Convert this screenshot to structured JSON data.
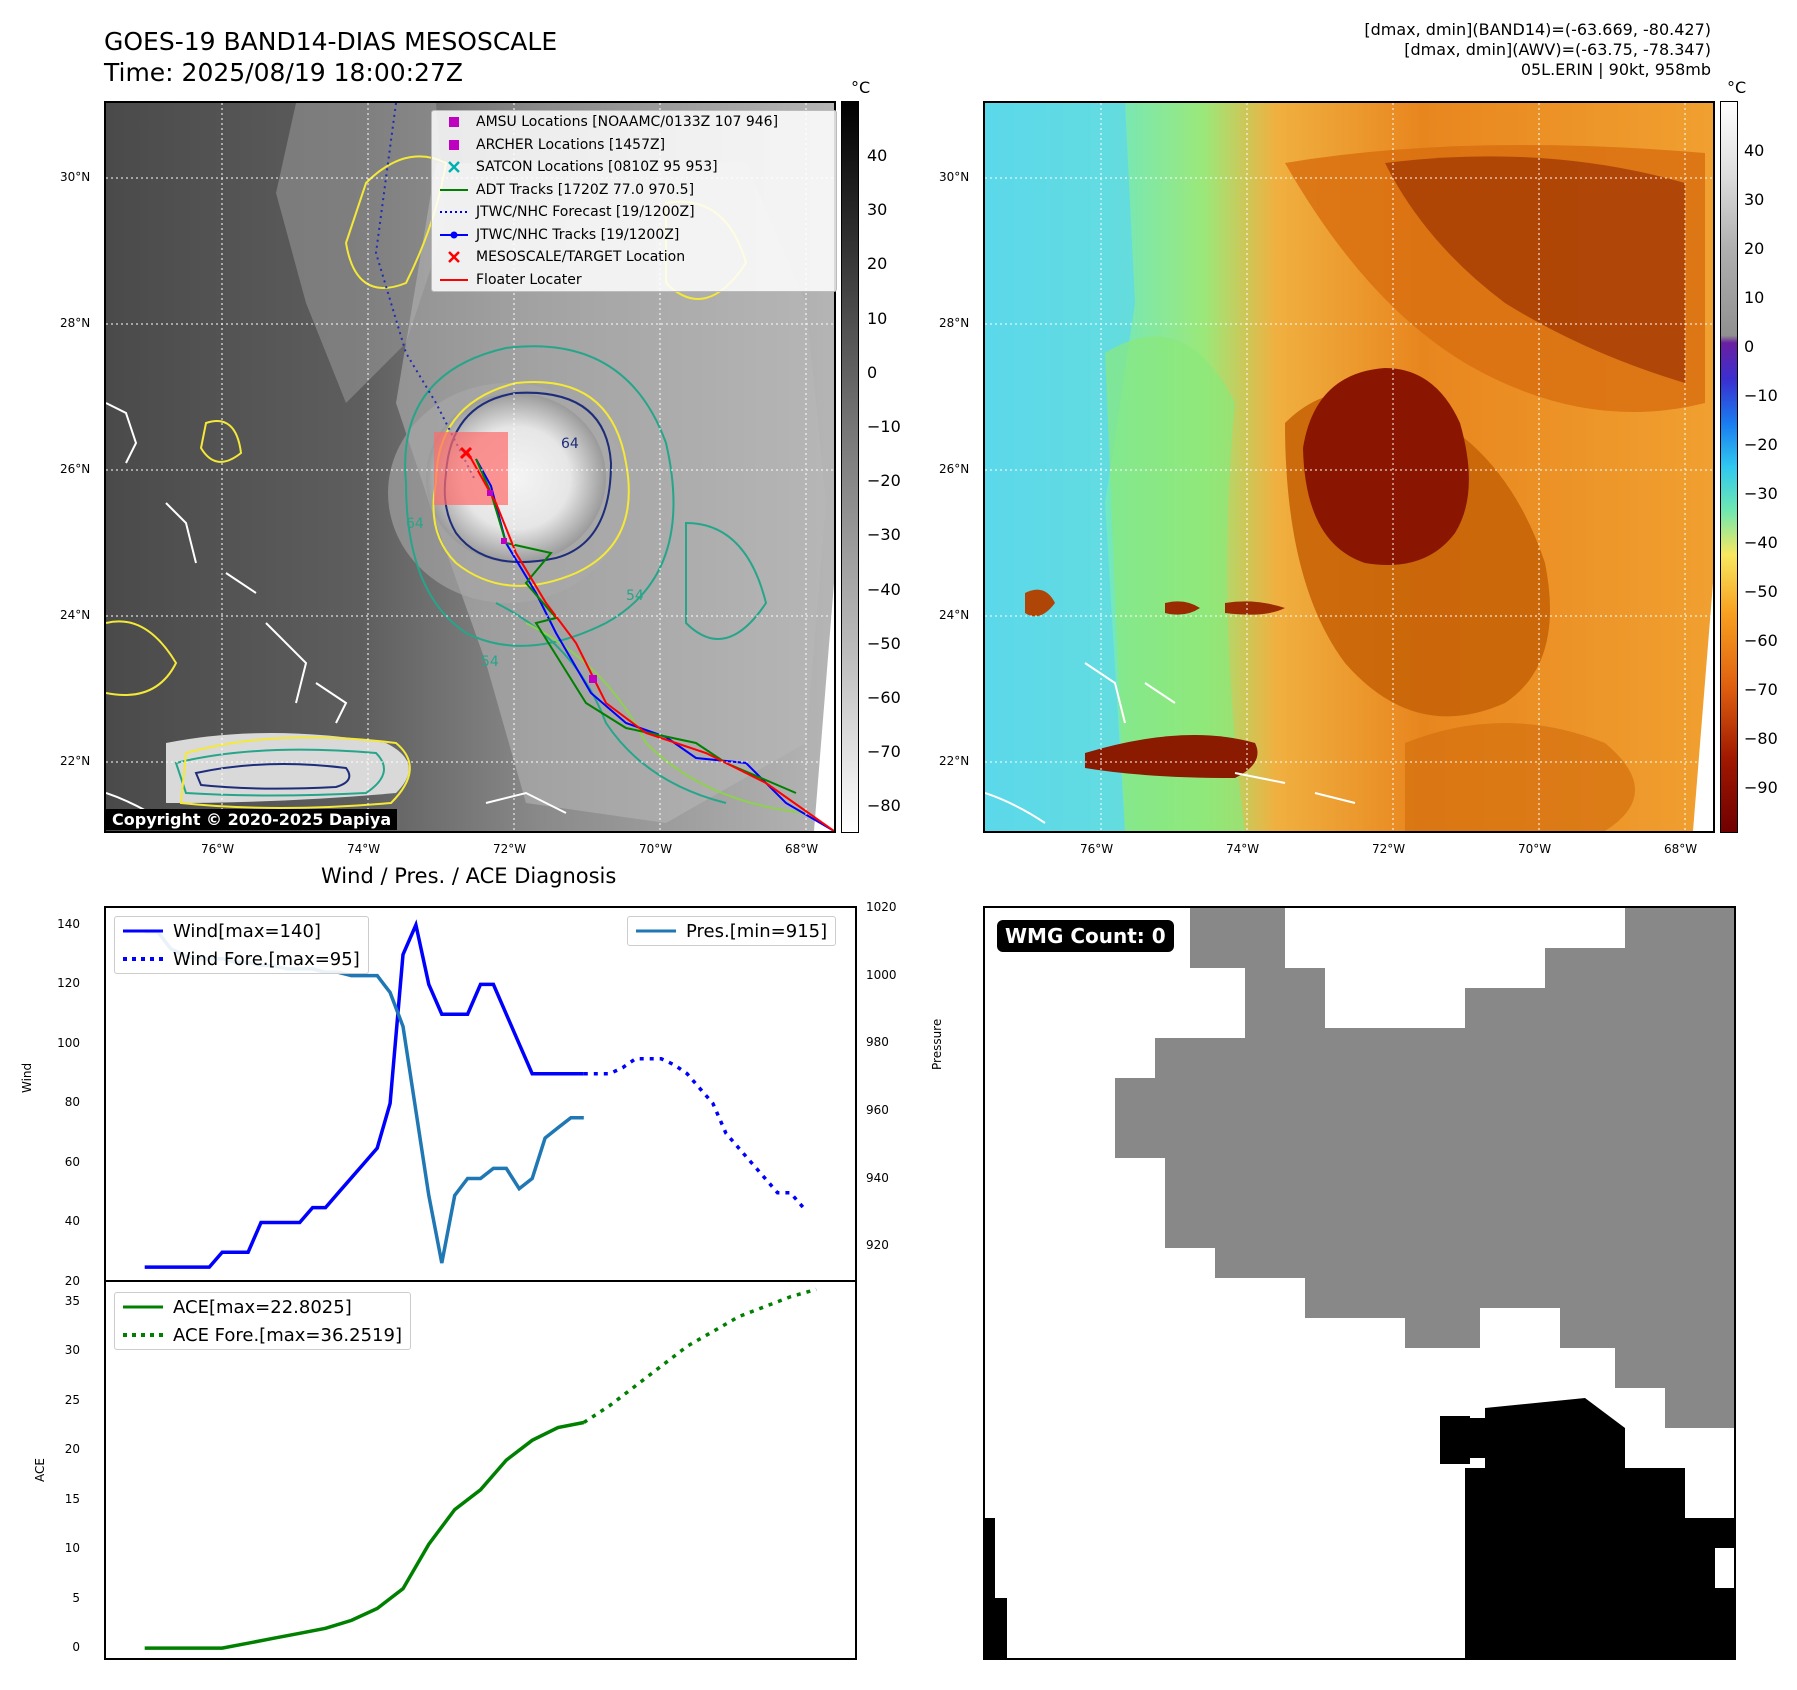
{
  "header": {
    "title_line1": "GOES-19 BAND14-DIAS MESOSCALE",
    "title_line2": "Time: 2025/08/19 18:00:27Z",
    "right_line1": "[dmax, dmin](BAND14)=(-63.669, -80.427)",
    "right_line2": "[dmax, dmin](AWV)=(-63.75, -78.347)",
    "right_line3": "05L.ERIN | 90kt, 958mb"
  },
  "maps": {
    "lat_labels": [
      "30°N",
      "28°N",
      "26°N",
      "24°N",
      "22°N"
    ],
    "lon_labels": [
      "76°W",
      "74°W",
      "72°W",
      "70°W",
      "68°W"
    ],
    "unit": "°C",
    "cb1_ticks": [
      "40",
      "30",
      "20",
      "10",
      "0",
      "−10",
      "−20",
      "−30",
      "−40",
      "−50",
      "−60",
      "−70",
      "−80"
    ],
    "cb2_ticks": [
      "40",
      "30",
      "20",
      "10",
      "0",
      "−10",
      "−20",
      "−30",
      "−40",
      "−50",
      "−60",
      "−70",
      "−80",
      "−90"
    ],
    "copyright": "Copyright © 2020-2025 Dapiya",
    "contour_labels": [
      "64",
      "54",
      "64",
      "54"
    ]
  },
  "legend": {
    "items": [
      {
        "label": "AMSU Locations [NOAAMC/0133Z 107 946]",
        "symbol": "square",
        "color": "#c000c0"
      },
      {
        "label": "ARCHER Locations [1457Z]",
        "symbol": "square",
        "color": "#c000c0"
      },
      {
        "label": "SATCON Locations [0810Z 95 953]",
        "symbol": "x",
        "color": "#00b0b0"
      },
      {
        "label": "ADT Tracks [1720Z 77.0 970.5]",
        "symbol": "line",
        "color": "#008000"
      },
      {
        "label": "JTWC/NHC Forecast [19/1200Z]",
        "symbol": "dotted",
        "color": "#0000dd"
      },
      {
        "label": "JTWC/NHC Tracks [19/1200Z]",
        "symbol": "line-dot",
        "color": "#0000ff"
      },
      {
        "label": "MESOSCALE/TARGET Location",
        "symbol": "x",
        "color": "#ff0000"
      },
      {
        "label": "Floater Locater",
        "symbol": "line",
        "color": "#ff0000"
      }
    ]
  },
  "diag": {
    "title": "Wind / Pres. / ACE Diagnosis",
    "wind_ylabel": "Wind",
    "pres_ylabel": "Pressure",
    "ace_ylabel": "ACE",
    "wind_ticks": [
      "140",
      "120",
      "100",
      "80",
      "60",
      "40",
      "20"
    ],
    "pres_ticks": [
      "1020",
      "1000",
      "980",
      "960",
      "940",
      "920"
    ],
    "ace_ticks": [
      "35",
      "30",
      "25",
      "20",
      "15",
      "10",
      "5",
      "0"
    ],
    "wind_legend": "Wind[max=140]",
    "wind_fore_legend": "Wind Fore.[max=95]",
    "pres_legend": "Pres.[min=915]",
    "ace_legend": "ACE[max=22.8025]",
    "ace_fore_legend": "ACE Fore.[max=36.2519]"
  },
  "wmg": {
    "badge": "WMG Count: 0"
  },
  "chart_data": [
    {
      "type": "line",
      "title": "Wind / Pres. / ACE Diagnosis",
      "ylabel": "Wind",
      "ylim": [
        20,
        145
      ],
      "series": [
        {
          "name": "Wind[max=140]",
          "x": [
            0,
            5,
            6,
            8,
            9,
            10,
            11,
            12,
            13,
            14,
            15,
            16,
            17,
            18,
            19,
            20,
            21,
            22,
            23,
            24,
            25,
            26,
            27,
            28,
            29,
            30,
            31,
            32,
            33,
            34
          ],
          "values": [
            25,
            25,
            30,
            30,
            40,
            40,
            40,
            40,
            45,
            45,
            50,
            55,
            60,
            65,
            80,
            130,
            140,
            120,
            110,
            110,
            110,
            120,
            120,
            110,
            100,
            90,
            90,
            90,
            90,
            90
          ]
        },
        {
          "name": "Wind Fore.[max=95]",
          "x": [
            34,
            35,
            36,
            37,
            38,
            39,
            40,
            41,
            42,
            43,
            44,
            45,
            46,
            47,
            48,
            49,
            50,
            51
          ],
          "values": [
            90,
            90,
            90,
            92,
            95,
            95,
            95,
            93,
            90,
            85,
            80,
            70,
            65,
            60,
            55,
            50,
            50,
            45
          ]
        }
      ]
    },
    {
      "type": "line",
      "ylabel": "Pressure",
      "ylim": [
        910,
        1020
      ],
      "series": [
        {
          "name": "Pres.[min=915]",
          "x": [
            0,
            1,
            2,
            3,
            4,
            5,
            6,
            7,
            8,
            9,
            10,
            11,
            12,
            13,
            14,
            15,
            16,
            17,
            18,
            19,
            20,
            21,
            22,
            23,
            24,
            25,
            26,
            27,
            28,
            29,
            30,
            31,
            32,
            33,
            34
          ],
          "values": [
            1013,
            1013,
            1008,
            1006,
            1005,
            1005,
            1005,
            1004,
            1004,
            1003,
            1003,
            1002,
            1002,
            1002,
            1001,
            1001,
            1000,
            1000,
            1000,
            995,
            985,
            960,
            935,
            915,
            935,
            940,
            940,
            943,
            943,
            937,
            940,
            952,
            955,
            958,
            958
          ]
        }
      ]
    },
    {
      "type": "line",
      "ylabel": "ACE",
      "ylim": [
        -1,
        37
      ],
      "series": [
        {
          "name": "ACE[max=22.8025]",
          "x": [
            0,
            2,
            4,
            6,
            8,
            10,
            12,
            14,
            16,
            18,
            20,
            22,
            24,
            26,
            28,
            30,
            32,
            34
          ],
          "values": [
            0,
            0,
            0,
            0,
            0.5,
            1,
            1.5,
            2,
            2.8,
            4,
            6,
            10.5,
            14,
            16,
            19,
            21,
            22.3,
            22.8
          ]
        },
        {
          "name": "ACE Fore.[max=36.2519]",
          "x": [
            34,
            36,
            38,
            40,
            42,
            44,
            46,
            48,
            50,
            52
          ],
          "values": [
            22.8,
            24.5,
            26.5,
            28.5,
            30.5,
            32,
            33.5,
            34.5,
            35.5,
            36.25
          ]
        }
      ]
    }
  ]
}
